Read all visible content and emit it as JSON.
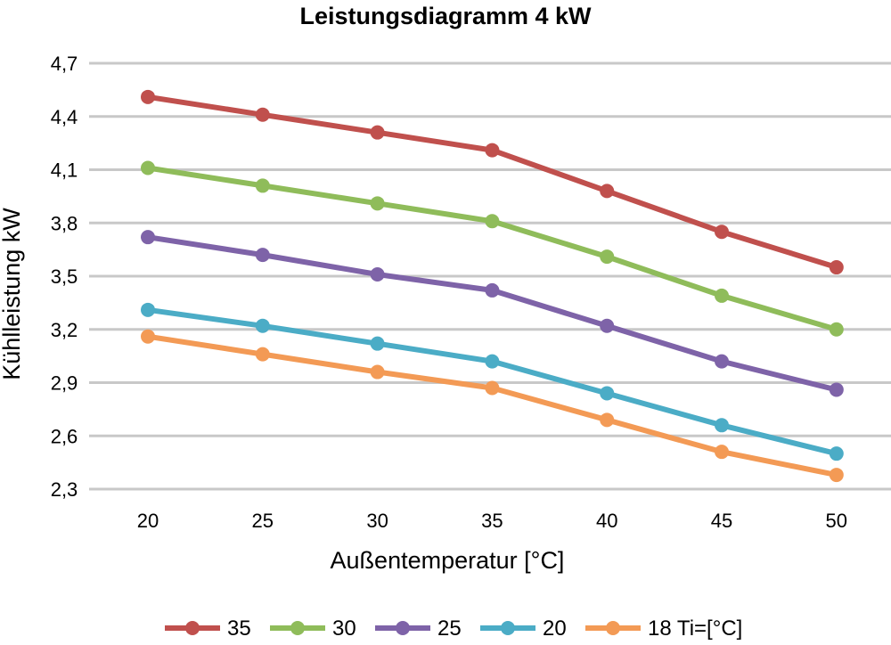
{
  "chart_data": {
    "type": "line",
    "title": "Leistungsdiagramm 4 kW",
    "xlabel": "Außentemperatur [°C]",
    "ylabel": "Kühlleistung kW",
    "x": [
      20,
      25,
      30,
      35,
      40,
      45,
      50
    ],
    "x_tick_labels": [
      "20",
      "25",
      "30",
      "35",
      "40",
      "45",
      "50"
    ],
    "ylim": [
      2.3,
      4.7
    ],
    "y_ticks": [
      2.3,
      2.6,
      2.9,
      3.2,
      3.5,
      3.8,
      4.1,
      4.4,
      4.7
    ],
    "y_tick_labels": [
      "2,3",
      "2,6",
      "2,9",
      "3,2",
      "3,5",
      "3,8",
      "4,1",
      "4,4",
      "4,7"
    ],
    "grid": "horizontal",
    "legend_position": "bottom",
    "series": [
      {
        "name": "35",
        "color": "#c0504d",
        "values": [
          4.51,
          4.41,
          4.31,
          4.21,
          3.98,
          3.75,
          3.55
        ]
      },
      {
        "name": "30",
        "color": "#8fbc5a",
        "values": [
          4.11,
          4.01,
          3.91,
          3.81,
          3.61,
          3.39,
          3.2
        ]
      },
      {
        "name": "25",
        "color": "#7e63a8",
        "values": [
          3.72,
          3.62,
          3.51,
          3.42,
          3.22,
          3.02,
          2.86
        ]
      },
      {
        "name": "20",
        "color": "#4bacc6",
        "values": [
          3.31,
          3.22,
          3.12,
          3.02,
          2.84,
          2.66,
          2.5
        ]
      },
      {
        "name": "18 Ti=[°C]",
        "color": "#f39a55",
        "values": [
          3.16,
          3.06,
          2.96,
          2.87,
          2.69,
          2.51,
          2.38
        ]
      }
    ]
  }
}
